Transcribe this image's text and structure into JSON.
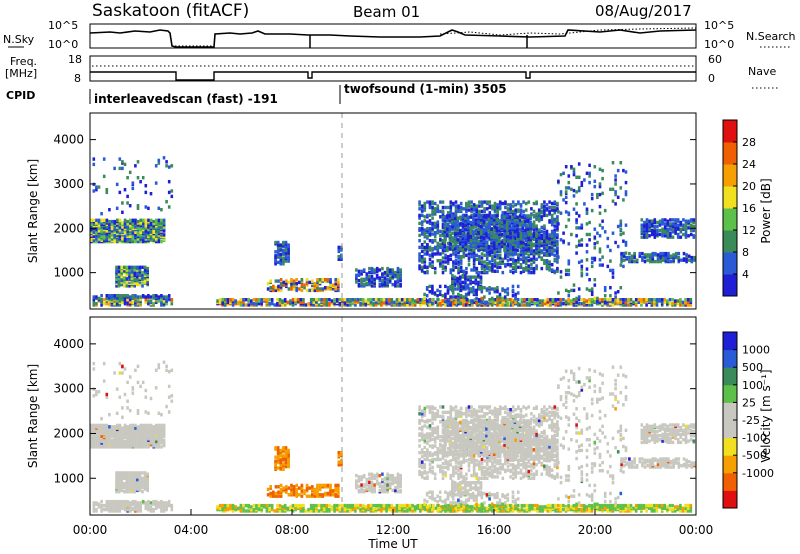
{
  "header": {
    "site": "Saskatoon (fitACF)",
    "beam": "Beam 01",
    "date": "08/Aug/2017"
  },
  "left_labels": {
    "nsky": "N.Sky",
    "freq": "Freq.",
    "freq_unit": "[MHz]",
    "cpid": "CPID"
  },
  "right_labels": {
    "nsearch": "N.Search",
    "nave": "Nave"
  },
  "cpid_labels": [
    "interleavedscan (fast) -191",
    "twofsound (1-min) 3505"
  ],
  "colors": {
    "power_scale": [
      "#1f1fd6",
      "#2a5bd6",
      "#3a8a5a",
      "#5cc04a",
      "#f0e020",
      "#f5a000",
      "#f06000",
      "#e01010"
    ],
    "velocity_scale": [
      "#e01010",
      "#f06000",
      "#f5a000",
      "#f0e020",
      "#c8c8c0",
      "#c8c8c0",
      "#5cc04a",
      "#3a8a5a",
      "#2a5bd6",
      "#1f1fd6"
    ],
    "ground_scatter": "#c8c8c0"
  },
  "chart_data": [
    {
      "type": "line",
      "name": "nsky-nsearch",
      "ylabel_left": "N.Sky",
      "ylabel_right": "N.Search",
      "left_ticks": [
        "10^5",
        "10^0"
      ],
      "right_ticks": [
        "10^5",
        "10^0"
      ],
      "x_range_hours": [
        0,
        24
      ]
    },
    {
      "type": "line",
      "name": "freq-nave",
      "ylabel_left": "Freq. [MHz]",
      "ylabel_right": "Nave",
      "left_ticks": [
        "18",
        "8"
      ],
      "right_ticks": [
        "60",
        "0"
      ],
      "x_range_hours": [
        0,
        24
      ]
    },
    {
      "type": "heatmap",
      "name": "power",
      "ylabel": "Slant Range [km]",
      "yticks": [
        1000,
        2000,
        3000,
        4000
      ],
      "ylim": [
        180,
        4600
      ],
      "x_range_hours": [
        0,
        24
      ],
      "colorbar_label": "Power [dB]",
      "colorbar_ticks": [
        4,
        8,
        12,
        16,
        20,
        24,
        28
      ]
    },
    {
      "type": "heatmap",
      "name": "velocity",
      "ylabel": "Slant Range [km]",
      "yticks": [
        1000,
        2000,
        3000,
        4000
      ],
      "ylim": [
        180,
        4600
      ],
      "x_range_hours": [
        0,
        24
      ],
      "xlabel": "Time UT",
      "xticks": [
        "00:00",
        "04:00",
        "08:00",
        "12:00",
        "16:00",
        "20:00",
        "00:00"
      ],
      "colorbar_label": "Velocity [m s⁻¹]",
      "colorbar_ticks": [
        "1000",
        "500",
        "100",
        "25",
        "-25",
        "-100",
        "-500",
        "-1000"
      ]
    }
  ]
}
